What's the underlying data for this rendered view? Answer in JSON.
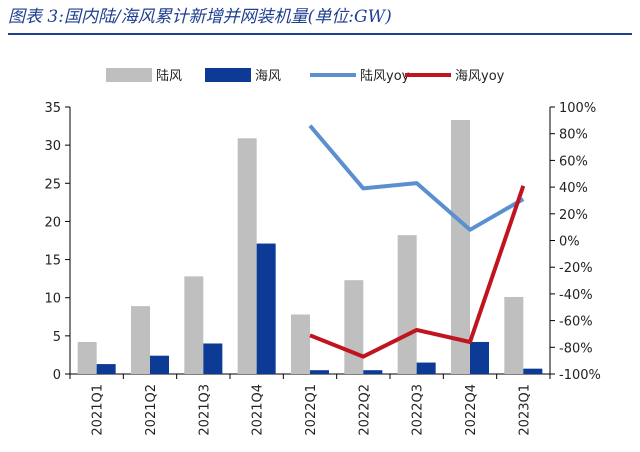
{
  "figure_title": "图表 3:国内陆/海风累计新增并网装机量(单位:GW)",
  "chart_data": {
    "type": "bar",
    "categories": [
      "2021Q1",
      "2021Q2",
      "2021Q3",
      "2021Q4",
      "2022Q1",
      "2022Q2",
      "2022Q3",
      "2022Q4",
      "2023Q1"
    ],
    "series": [
      {
        "name": "陆风",
        "kind": "bar",
        "axis": "left",
        "color": "#bfbfbf",
        "values": [
          4.2,
          8.9,
          12.8,
          30.9,
          7.8,
          12.3,
          18.2,
          33.3,
          10.1
        ]
      },
      {
        "name": "海风",
        "kind": "bar",
        "axis": "left",
        "color": "#0d3a94",
        "values": [
          1.3,
          2.4,
          4.0,
          17.1,
          0.5,
          0.5,
          1.5,
          4.2,
          0.7
        ]
      },
      {
        "name": "陆风yoy",
        "kind": "line",
        "axis": "right",
        "color": "#5b8fd0",
        "values": [
          null,
          null,
          null,
          null,
          86,
          39,
          43,
          8,
          31
        ]
      },
      {
        "name": "海风yoy",
        "kind": "line",
        "axis": "right",
        "color": "#c0141e",
        "values": [
          null,
          null,
          null,
          null,
          -71,
          -87,
          -67,
          -76,
          41
        ]
      }
    ],
    "left_axis": {
      "ylim": [
        0,
        35
      ],
      "ticks": [
        0,
        5,
        10,
        15,
        20,
        25,
        30,
        35
      ]
    },
    "right_axis": {
      "ylim": [
        -100,
        100
      ],
      "ticks": [
        -100,
        -80,
        -60,
        -40,
        -20,
        0,
        20,
        40,
        60,
        80,
        100
      ],
      "unit": "%"
    },
    "legend_position": "top",
    "grid": false
  }
}
